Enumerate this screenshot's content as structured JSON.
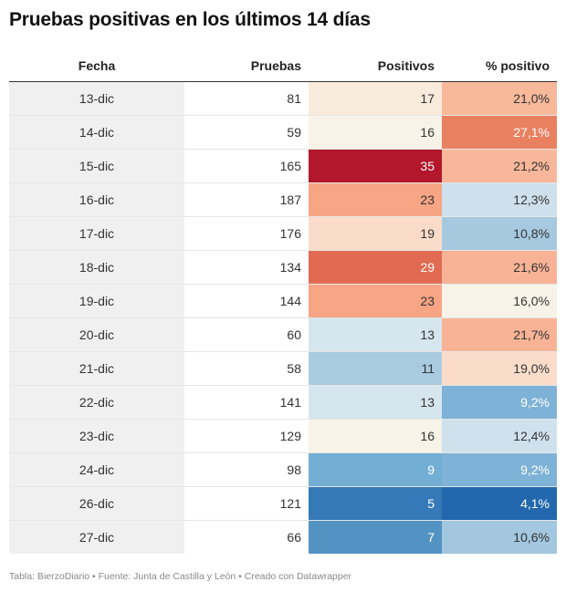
{
  "title": "Pruebas positivas en los últimos 14 días",
  "footer": "Tabla: BierzoDiario • Fuente: Junta de Castilla y León • Creado con Datawrapper",
  "chart_data": {
    "type": "table",
    "title": "Pruebas positivas en los últimos 14 días",
    "columns": [
      "Fecha",
      "Pruebas",
      "Positivos",
      "% positivo"
    ],
    "rows": [
      {
        "fecha": "13-dic",
        "pruebas": "81",
        "positivos": "17",
        "pct": "21,0%",
        "pos_bg": "#f9ebdc",
        "pos_fg": "#333333",
        "pct_bg": "#f8b89a",
        "pct_fg": "#333333"
      },
      {
        "fecha": "14-dic",
        "pruebas": "59",
        "positivos": "16",
        "pct": "27,1%",
        "pos_bg": "#f7f3e8",
        "pos_fg": "#333333",
        "pct_bg": "#e98160",
        "pct_fg": "#ffffff"
      },
      {
        "fecha": "15-dic",
        "pruebas": "165",
        "positivos": "35",
        "pct": "21,2%",
        "pos_bg": "#b2172c",
        "pos_fg": "#ffffff",
        "pct_bg": "#f8b69a",
        "pct_fg": "#333333"
      },
      {
        "fecha": "16-dic",
        "pruebas": "187",
        "positivos": "23",
        "pct": "12,3%",
        "pos_bg": "#f7a584",
        "pos_fg": "#333333",
        "pct_bg": "#cde0ec",
        "pct_fg": "#333333"
      },
      {
        "fecha": "17-dic",
        "pruebas": "176",
        "positivos": "19",
        "pct": "10,8%",
        "pos_bg": "#fbdccb",
        "pos_fg": "#333333",
        "pct_bg": "#a6c9e0",
        "pct_fg": "#333333"
      },
      {
        "fecha": "18-dic",
        "pruebas": "134",
        "positivos": "29",
        "pct": "21,6%",
        "pos_bg": "#e06b52",
        "pos_fg": "#ffffff",
        "pct_bg": "#f8b396",
        "pct_fg": "#333333"
      },
      {
        "fecha": "19-dic",
        "pruebas": "144",
        "positivos": "23",
        "pct": "16,0%",
        "pos_bg": "#f7a584",
        "pos_fg": "#333333",
        "pct_bg": "#f7f3e8",
        "pct_fg": "#333333"
      },
      {
        "fecha": "20-dic",
        "pruebas": "60",
        "positivos": "13",
        "pct": "21,7%",
        "pos_bg": "#d6e6ef",
        "pos_fg": "#333333",
        "pct_bg": "#f8b396",
        "pct_fg": "#333333"
      },
      {
        "fecha": "21-dic",
        "pruebas": "58",
        "positivos": "11",
        "pct": "19,0%",
        "pos_bg": "#a9cbe2",
        "pos_fg": "#333333",
        "pct_bg": "#fbdccb",
        "pct_fg": "#333333"
      },
      {
        "fecha": "22-dic",
        "pruebas": "141",
        "positivos": "13",
        "pct": "9,2%",
        "pos_bg": "#d6e6ef",
        "pos_fg": "#333333",
        "pct_bg": "#7eb2d6",
        "pct_fg": "#ffffff"
      },
      {
        "fecha": "23-dic",
        "pruebas": "129",
        "positivos": "16",
        "pct": "12,4%",
        "pos_bg": "#f7f3e8",
        "pos_fg": "#333333",
        "pct_bg": "#cfe1ed",
        "pct_fg": "#333333"
      },
      {
        "fecha": "24-dic",
        "pruebas": "98",
        "positivos": "9",
        "pct": "9,2%",
        "pos_bg": "#73aed4",
        "pos_fg": "#ffffff",
        "pct_bg": "#7eb2d6",
        "pct_fg": "#ffffff"
      },
      {
        "fecha": "26-dic",
        "pruebas": "121",
        "positivos": "5",
        "pct": "4,1%",
        "pos_bg": "#3679b8",
        "pos_fg": "#ffffff",
        "pct_bg": "#2368ae",
        "pct_fg": "#ffffff"
      },
      {
        "fecha": "27-dic",
        "pruebas": "66",
        "positivos": "7",
        "pct": "10,6%",
        "pos_bg": "#5393c4",
        "pos_fg": "#ffffff",
        "pct_bg": "#a2c7df",
        "pct_fg": "#333333"
      }
    ]
  }
}
